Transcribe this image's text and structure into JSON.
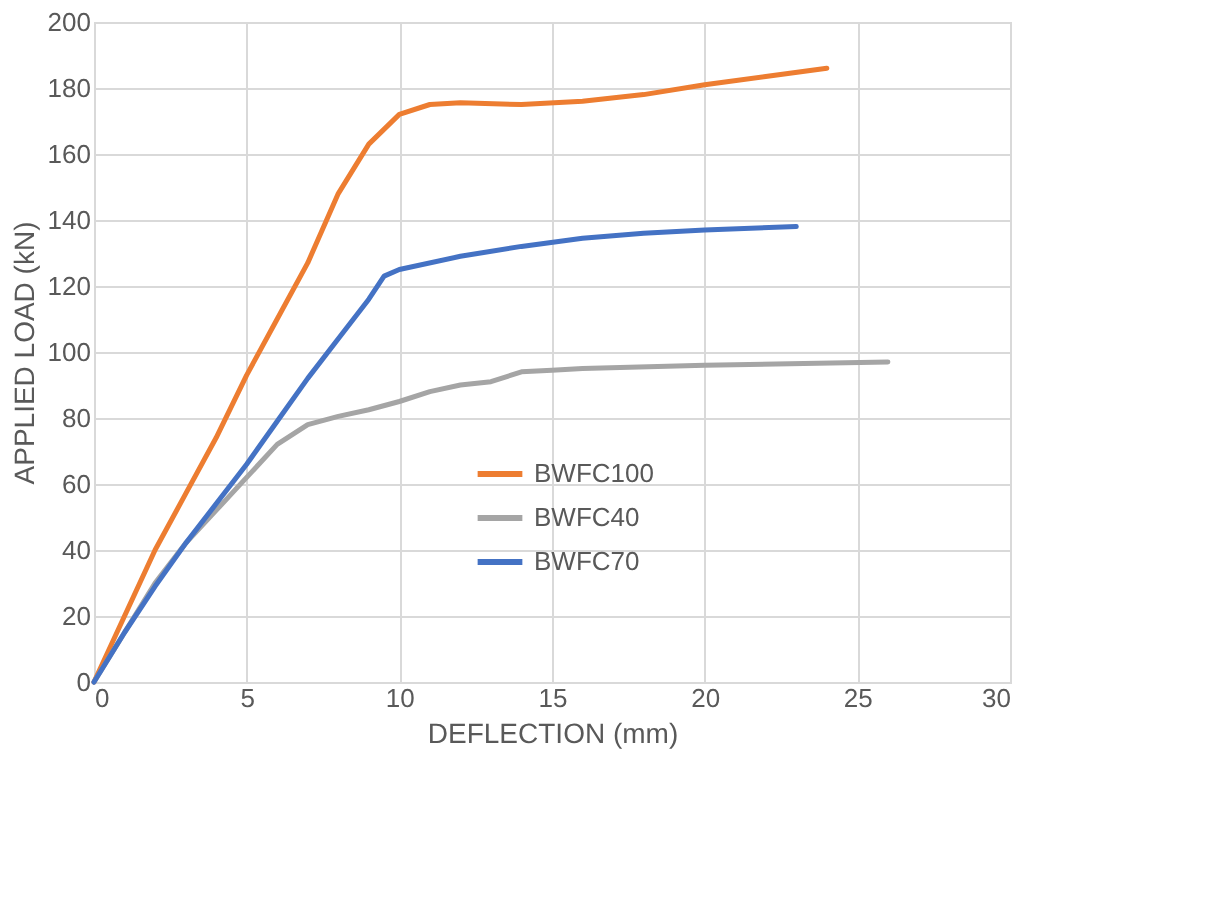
{
  "chart_data": {
    "type": "line",
    "xlabel": "DEFLECTION (mm)",
    "ylabel": "APPLIED LOAD (kN)",
    "xlim": [
      0,
      30
    ],
    "xticks": [
      0,
      5,
      10,
      15,
      20,
      25,
      30
    ],
    "ylim": [
      0,
      200
    ],
    "yticks": [
      0,
      20,
      40,
      60,
      80,
      100,
      120,
      140,
      160,
      180,
      200
    ],
    "grid": true,
    "legend": "center",
    "marker": "none",
    "line_style": "solid",
    "series": [
      {
        "name": "BWFC100",
        "color": "#ed7d31",
        "x": [
          0,
          1,
          2,
          3,
          4,
          5,
          6,
          7,
          8,
          9,
          10,
          11,
          12,
          14,
          16,
          18,
          20,
          22,
          24
        ],
        "values": [
          0,
          20,
          40,
          57,
          74,
          93,
          110,
          127,
          148,
          163,
          172,
          175,
          175.5,
          175,
          176,
          178,
          181,
          183.5,
          186
        ]
      },
      {
        "name": "BWFC40",
        "color": "#a5a5a5",
        "x": [
          0,
          1,
          2,
          3,
          4,
          5,
          6,
          7,
          8,
          9,
          10,
          11,
          12,
          13,
          14,
          15,
          16,
          20,
          26
        ],
        "values": [
          0,
          15,
          30,
          42,
          52,
          62,
          72,
          78,
          80.5,
          82.5,
          85,
          88,
          90,
          91,
          94,
          94.5,
          95,
          96,
          97
        ]
      },
      {
        "name": "BWFC70",
        "color": "#4472c4",
        "x": [
          0,
          1,
          2,
          3,
          4,
          5,
          6,
          7,
          8,
          9,
          9.5,
          10,
          12,
          14,
          16,
          18,
          20,
          23
        ],
        "values": [
          0,
          15,
          29,
          42,
          54,
          66,
          79,
          92,
          104,
          116,
          123,
          125,
          129,
          132,
          134.5,
          136,
          137,
          138
        ]
      }
    ]
  }
}
